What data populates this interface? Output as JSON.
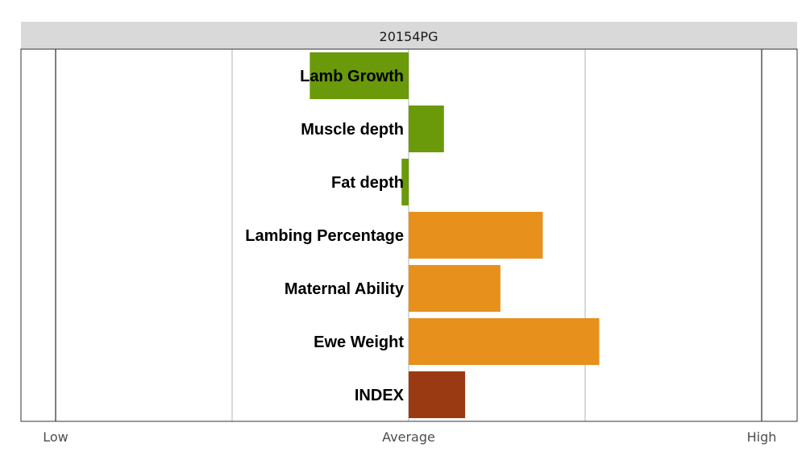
{
  "chart_data": {
    "type": "bar",
    "orientation": "horizontal",
    "title": "20154PG",
    "x_axis": {
      "ticks": [
        "Low",
        "Average",
        "High"
      ],
      "range": [
        -1,
        1
      ],
      "tick_values": [
        -1,
        0,
        1
      ],
      "gridlines": [
        -1,
        -0.5,
        0,
        0.5,
        1
      ]
    },
    "categories": [
      "Lamb Growth",
      "Muscle depth",
      "Fat depth",
      "Lambing Percentage",
      "Maternal Ability",
      "Ewe Weight",
      "INDEX"
    ],
    "values": [
      -0.28,
      0.1,
      -0.02,
      0.38,
      0.26,
      0.54,
      0.16
    ],
    "colors": [
      "#6a9a0a",
      "#6a9a0a",
      "#6a9a0a",
      "#e8901c",
      "#e8901c",
      "#e8901c",
      "#993a12"
    ],
    "grid": true,
    "legend": "none"
  },
  "style": {
    "strip_bg": "#d9d9d9",
    "panel_border": "#333333",
    "grid_color": "#b3b3b3",
    "tick_text_color": "#4d4d4d"
  }
}
